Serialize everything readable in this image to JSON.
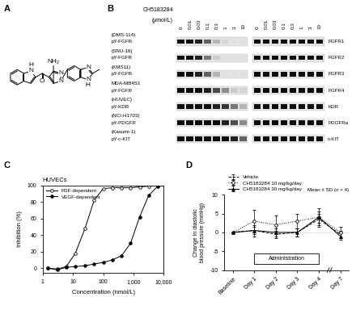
{
  "panel_labels": [
    "A",
    "B",
    "C",
    "D"
  ],
  "structure": {
    "atom_labels": [
      "H",
      "N",
      "O",
      "NH₂",
      "N",
      "N",
      "N",
      "N",
      "H"
    ]
  },
  "blot": {
    "compound": "CH5183284",
    "unit": "(μmol/L)",
    "concentrations": [
      0,
      0.01,
      0.03,
      0.1,
      0.3,
      1,
      3,
      10
    ],
    "rows": [
      {
        "cell_line": "(DMS-114)",
        "phospho_label": "pY-FGFR",
        "total_label": "FGFR1",
        "phospho_intensity": [
          1,
          1,
          0.9,
          0.6,
          0.2,
          0.05,
          0,
          0
        ],
        "total_intensity": [
          1,
          1,
          1,
          1,
          1,
          1,
          1,
          1
        ]
      },
      {
        "cell_line": "(SNU-16)",
        "phospho_label": "pY-FGFR",
        "total_label": "FGFR2",
        "phospho_intensity": [
          1,
          1,
          0.9,
          0.5,
          0.1,
          0,
          0,
          0
        ],
        "total_intensity": [
          1,
          1,
          1,
          1,
          1,
          1,
          1,
          1
        ]
      },
      {
        "cell_line": "(KMS11)",
        "phospho_label": "pY-FGFR",
        "total_label": "FGFR3",
        "phospho_intensity": [
          1,
          1,
          0.9,
          0.6,
          0.2,
          0,
          0,
          0
        ],
        "total_intensity": [
          1,
          1,
          1,
          1,
          1,
          1,
          1,
          1
        ]
      },
      {
        "cell_line": "MDA-MB453",
        "phospho_label": "pY-FGFR",
        "total_label": "FGFR4",
        "phospho_intensity": [
          1,
          1,
          1,
          0.9,
          0.7,
          0.4,
          0.1,
          0.05
        ],
        "total_intensity": [
          1,
          1,
          1,
          1,
          1,
          1,
          1,
          1
        ]
      },
      {
        "cell_line": "(HUVEC)",
        "phospho_label": "pY-KDR",
        "total_label": "KDR",
        "phospho_intensity": [
          1,
          1,
          1,
          1,
          0.9,
          0.8,
          0.5,
          0.2
        ],
        "total_intensity": [
          1,
          1,
          1,
          1,
          1,
          1,
          1,
          1
        ]
      },
      {
        "cell_line": "(NCI-H1703)",
        "phospho_label": "pY-PDGFR",
        "total_label": "PDGFRa",
        "phospho_intensity": [
          1,
          1,
          1,
          1,
          1,
          0.9,
          0.7,
          0.4
        ],
        "total_intensity": [
          1,
          1,
          1,
          1,
          1,
          1,
          1,
          1
        ]
      },
      {
        "cell_line": "(Kasumi-1)",
        "phospho_label": "pY-c-KIT",
        "total_label": "c-KIT",
        "phospho_intensity": [
          1,
          1,
          1,
          1,
          1,
          1,
          0.9,
          0.6
        ],
        "total_intensity": [
          1,
          1,
          1,
          1,
          1,
          1,
          1,
          1
        ]
      }
    ]
  },
  "chart_data": [
    {
      "type": "line",
      "title": "HUVECs",
      "x_label": "Concentration (nmol/L)",
      "y_label": "Inhibition (%)",
      "log": "x",
      "xlim": [
        1,
        10000
      ],
      "xticks": [
        1,
        10,
        100,
        {
          "value": 1000,
          "label": "1,000"
        },
        {
          "value": 10000,
          "label": "10,000"
        }
      ],
      "ylim": [
        -6,
        100
      ],
      "yticks": [
        0,
        20,
        40,
        60,
        80,
        100
      ],
      "legend": "upper left",
      "series": [
        {
          "name": "FGF-dependent",
          "color": "black",
          "marker": "open circle",
          "line_style": "solid",
          "x": [
            1.5,
            3,
            6,
            12,
            25,
            50,
            100,
            200,
            400,
            800,
            1600,
            3200,
            6400
          ],
          "values": [
            0,
            -1,
            2,
            18,
            48,
            82,
            96,
            97,
            97,
            97,
            98,
            99,
            100
          ]
        },
        {
          "name": "VEGF-dependent",
          "color": "black",
          "marker": "filled circle",
          "line_style": "solid",
          "x": [
            1.5,
            3,
            6,
            12,
            25,
            50,
            100,
            200,
            400,
            800,
            1600,
            3200,
            6400
          ],
          "values": [
            0,
            -2,
            1,
            2,
            3,
            5,
            7,
            10,
            15,
            30,
            62,
            88,
            99
          ]
        }
      ]
    },
    {
      "type": "line",
      "y_label": "Change in diastolic\nblood pressure (mmHg)",
      "categories": [
        "Baseline",
        "Day 1",
        "Day 2",
        "Day 3",
        "Day 4",
        "Day 7"
      ],
      "ylim": [
        -10,
        10
      ],
      "yticks": [
        -10,
        -5,
        0,
        5,
        10
      ],
      "legend": "top",
      "annotations": [
        "Mean ± SD (n = 4)"
      ],
      "administration": {
        "text": "Administration",
        "from": "Day 1",
        "to": "Day 4"
      },
      "series": [
        {
          "name": "Vehicle",
          "color": "black",
          "marker": "none",
          "line_style": "dashed",
          "values": [
            0,
            0.5,
            -0.5,
            0,
            3.5,
            -0.5
          ],
          "errors": [
            0,
            1,
            1,
            1,
            1.5,
            1
          ]
        },
        {
          "name": "CH5183284 10 mg/kg/day",
          "color": "black",
          "marker": "open circle",
          "line_style": "dotted",
          "values": [
            0,
            3,
            2,
            3,
            4,
            0
          ],
          "errors": [
            0,
            3,
            2.5,
            2,
            2.5,
            1.5
          ]
        },
        {
          "name": "CH5183284 30 mg/kg/day",
          "color": "black",
          "marker": "filled triangle",
          "line_style": "solid",
          "values": [
            0,
            0.5,
            0,
            0,
            4,
            -1
          ],
          "errors": [
            0,
            1.5,
            1,
            1,
            1.5,
            1
          ]
        }
      ]
    }
  ]
}
